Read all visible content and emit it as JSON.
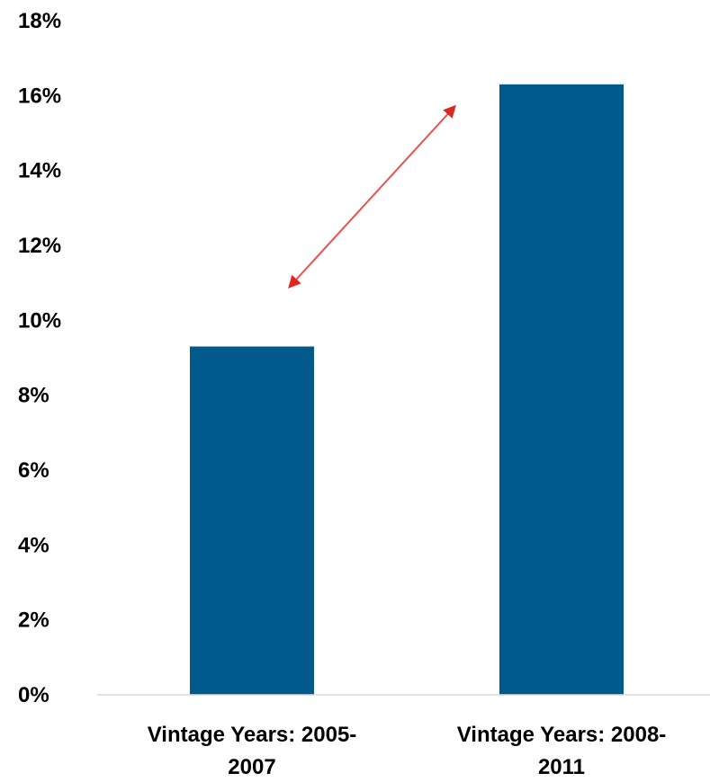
{
  "chart_data": {
    "type": "bar",
    "categories": [
      [
        "Vintage Years:  2005-",
        "2007"
      ],
      [
        "Vintage Years:  2008-",
        "2011"
      ]
    ],
    "values": [
      9.3,
      16.3
    ],
    "ylim": [
      0,
      18
    ],
    "yticks": [
      "0%",
      "2%",
      "4%",
      "6%",
      "8%",
      "10%",
      "12%",
      "14%",
      "16%",
      "18%"
    ],
    "ytick_values": [
      0,
      2,
      4,
      6,
      8,
      10,
      12,
      14,
      16,
      18
    ],
    "grid": false,
    "bar_color": "#005A8C",
    "arrow_color": "#E8524F",
    "annotation": {
      "type": "double-arrow",
      "from_y": 10.9,
      "to_y": 15.7
    }
  }
}
